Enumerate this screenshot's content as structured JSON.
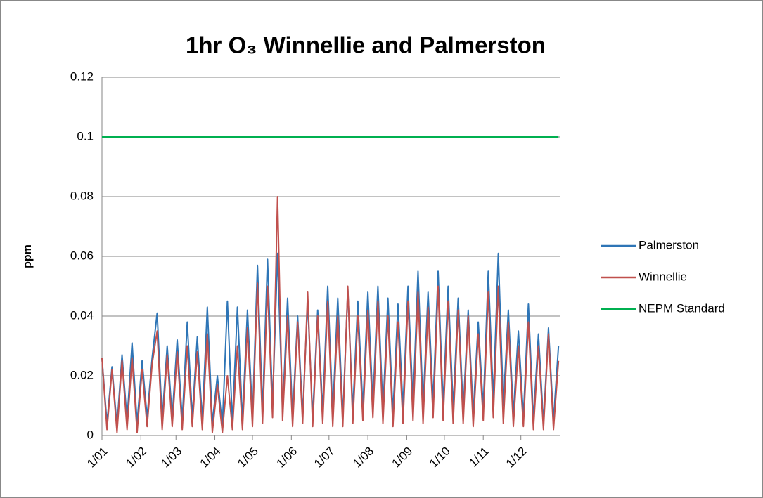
{
  "chart_data": {
    "type": "line",
    "title": "1hr O₃ Winnellie and Palmerston",
    "y_label": "ppm",
    "x": [
      1,
      5,
      9,
      13,
      17,
      21,
      25,
      29,
      33,
      37,
      41,
      45,
      49,
      53,
      57,
      61,
      65,
      69,
      73,
      77,
      81,
      85,
      89,
      93,
      97,
      101,
      105,
      109,
      113,
      117,
      121,
      125,
      129,
      133,
      137,
      141,
      145,
      149,
      153,
      157,
      161,
      165,
      169,
      173,
      177,
      181,
      185,
      189,
      193,
      197,
      201,
      205,
      209,
      213,
      217,
      221,
      225,
      229,
      233,
      237,
      241,
      245,
      249,
      253,
      257,
      261,
      265,
      269,
      273,
      277,
      281,
      285,
      289,
      293,
      297,
      301,
      305,
      309,
      313,
      317,
      321,
      325,
      329,
      333,
      337,
      341,
      345,
      349,
      353,
      357,
      361,
      365
    ],
    "series": [
      {
        "name": "Palmerston",
        "color": "#2e75b6",
        "values": [
          0.026,
          0.004,
          0.023,
          0.003,
          0.027,
          0.005,
          0.031,
          0.004,
          0.025,
          0.006,
          0.026,
          0.041,
          0.005,
          0.03,
          0.006,
          0.032,
          0.005,
          0.038,
          0.006,
          0.033,
          0.005,
          0.043,
          0.004,
          0.02,
          0.003,
          0.045,
          0.004,
          0.043,
          0.005,
          0.042,
          0.006,
          0.057,
          0.008,
          0.059,
          0.01,
          0.061,
          0.008,
          0.046,
          0.006,
          0.04,
          0.007,
          0.045,
          0.006,
          0.042,
          0.008,
          0.05,
          0.007,
          0.046,
          0.006,
          0.049,
          0.008,
          0.045,
          0.009,
          0.048,
          0.01,
          0.05,
          0.008,
          0.046,
          0.007,
          0.044,
          0.009,
          0.05,
          0.01,
          0.055,
          0.009,
          0.048,
          0.011,
          0.055,
          0.01,
          0.05,
          0.009,
          0.046,
          0.008,
          0.042,
          0.007,
          0.038,
          0.009,
          0.055,
          0.012,
          0.061,
          0.01,
          0.042,
          0.007,
          0.035,
          0.006,
          0.044,
          0.005,
          0.034,
          0.004,
          0.036,
          0.005,
          0.03
        ]
      },
      {
        "name": "Winnellie",
        "color": "#c0504d",
        "values": [
          0.026,
          0.002,
          0.022,
          0.001,
          0.025,
          0.002,
          0.026,
          0.001,
          0.022,
          0.003,
          0.024,
          0.035,
          0.002,
          0.027,
          0.003,
          0.028,
          0.002,
          0.03,
          0.003,
          0.028,
          0.002,
          0.034,
          0.001,
          0.017,
          0.001,
          0.02,
          0.002,
          0.03,
          0.002,
          0.036,
          0.003,
          0.051,
          0.004,
          0.05,
          0.006,
          0.08,
          0.005,
          0.04,
          0.003,
          0.038,
          0.004,
          0.048,
          0.003,
          0.04,
          0.004,
          0.045,
          0.003,
          0.04,
          0.003,
          0.05,
          0.004,
          0.04,
          0.005,
          0.042,
          0.006,
          0.045,
          0.004,
          0.04,
          0.003,
          0.038,
          0.004,
          0.045,
          0.005,
          0.048,
          0.004,
          0.043,
          0.006,
          0.05,
          0.005,
          0.045,
          0.004,
          0.042,
          0.004,
          0.04,
          0.003,
          0.034,
          0.005,
          0.048,
          0.006,
          0.05,
          0.004,
          0.038,
          0.003,
          0.03,
          0.003,
          0.038,
          0.002,
          0.03,
          0.002,
          0.034,
          0.002,
          0.025
        ]
      },
      {
        "name": "NEPM Standard",
        "color": "#00b050",
        "x": [
          1,
          365
        ],
        "values": [
          0.1,
          0.1
        ]
      }
    ],
    "xlim": [
      1,
      366
    ],
    "xticks": [
      {
        "value": 1,
        "label": "1/01"
      },
      {
        "value": 32,
        "label": "1/02"
      },
      {
        "value": 60,
        "label": "1/03"
      },
      {
        "value": 91,
        "label": "1/04"
      },
      {
        "value": 121,
        "label": "1/05"
      },
      {
        "value": 152,
        "label": "1/06"
      },
      {
        "value": 182,
        "label": "1/07"
      },
      {
        "value": 213,
        "label": "1/08"
      },
      {
        "value": 244,
        "label": "1/09"
      },
      {
        "value": 274,
        "label": "1/10"
      },
      {
        "value": 305,
        "label": "1/11"
      },
      {
        "value": 335,
        "label": "1/12"
      }
    ],
    "ylim": [
      0,
      0.12
    ],
    "yticks": [
      0,
      0.02,
      0.04,
      0.06,
      0.08,
      0.1,
      0.12
    ],
    "grid": true,
    "legend": "right"
  }
}
